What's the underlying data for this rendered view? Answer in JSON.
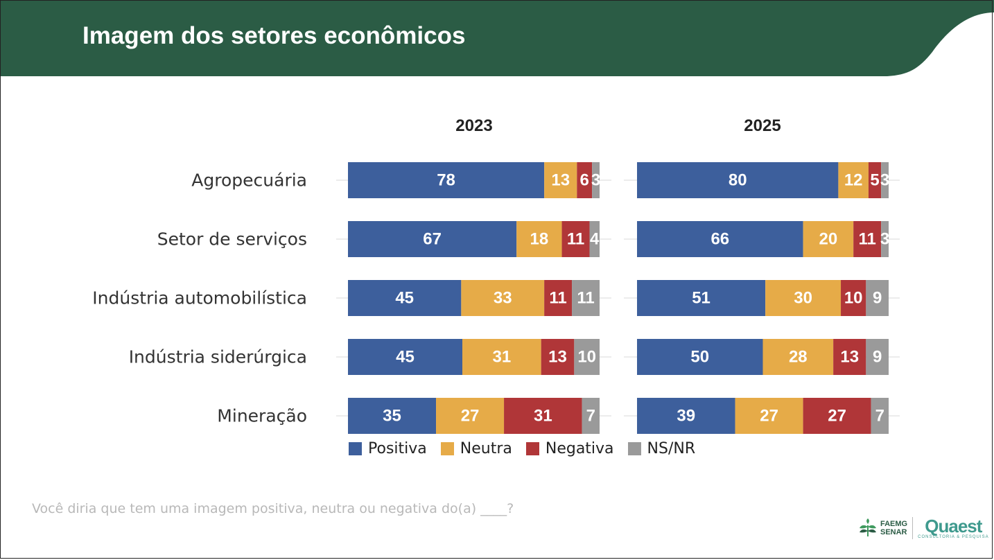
{
  "header": {
    "title": "Imagem dos setores econômicos"
  },
  "chart_data": {
    "type": "bar",
    "orientation": "horizontal",
    "stacked": true,
    "percent_scale": true,
    "categories": [
      "Agropecuária",
      "Setor de serviços",
      "Indústria automobilística",
      "Indústria siderúrgica",
      "Mineração"
    ],
    "panels": [
      {
        "title": "2023",
        "series": [
          {
            "name": "Positiva",
            "values": [
              78,
              67,
              45,
              45,
              35
            ]
          },
          {
            "name": "Neutra",
            "values": [
              13,
              18,
              33,
              31,
              27
            ]
          },
          {
            "name": "Negativa",
            "values": [
              6,
              11,
              11,
              13,
              31
            ]
          },
          {
            "name": "NS/NR",
            "values": [
              3,
              4,
              11,
              10,
              7
            ]
          }
        ]
      },
      {
        "title": "2025",
        "series": [
          {
            "name": "Positiva",
            "values": [
              80,
              66,
              51,
              50,
              39
            ]
          },
          {
            "name": "Neutra",
            "values": [
              12,
              20,
              30,
              28,
              27
            ]
          },
          {
            "name": "Negativa",
            "values": [
              5,
              11,
              10,
              13,
              27
            ]
          },
          {
            "name": "NS/NR",
            "values": [
              3,
              3,
              9,
              9,
              7
            ]
          }
        ]
      }
    ],
    "legend": [
      "Positiva",
      "Neutra",
      "Negativa",
      "NS/NR"
    ],
    "legend_position": "bottom"
  },
  "colors": {
    "header": "#2b5c45",
    "Positiva": "#3d5f9c",
    "Neutra": "#e6ab48",
    "Negativa": "#b03638",
    "NS/NR": "#9a9a9a"
  },
  "footer": {
    "question": "Você diria que tem uma imagem positiva, neutra ou negativa do(a) ____?",
    "logo_faemg_line1": "FAEMG",
    "logo_faemg_line2": "SENAR",
    "logo_quaest": "Quaest",
    "logo_quaest_sub": "CONSULTORIA & PESQUISA"
  }
}
